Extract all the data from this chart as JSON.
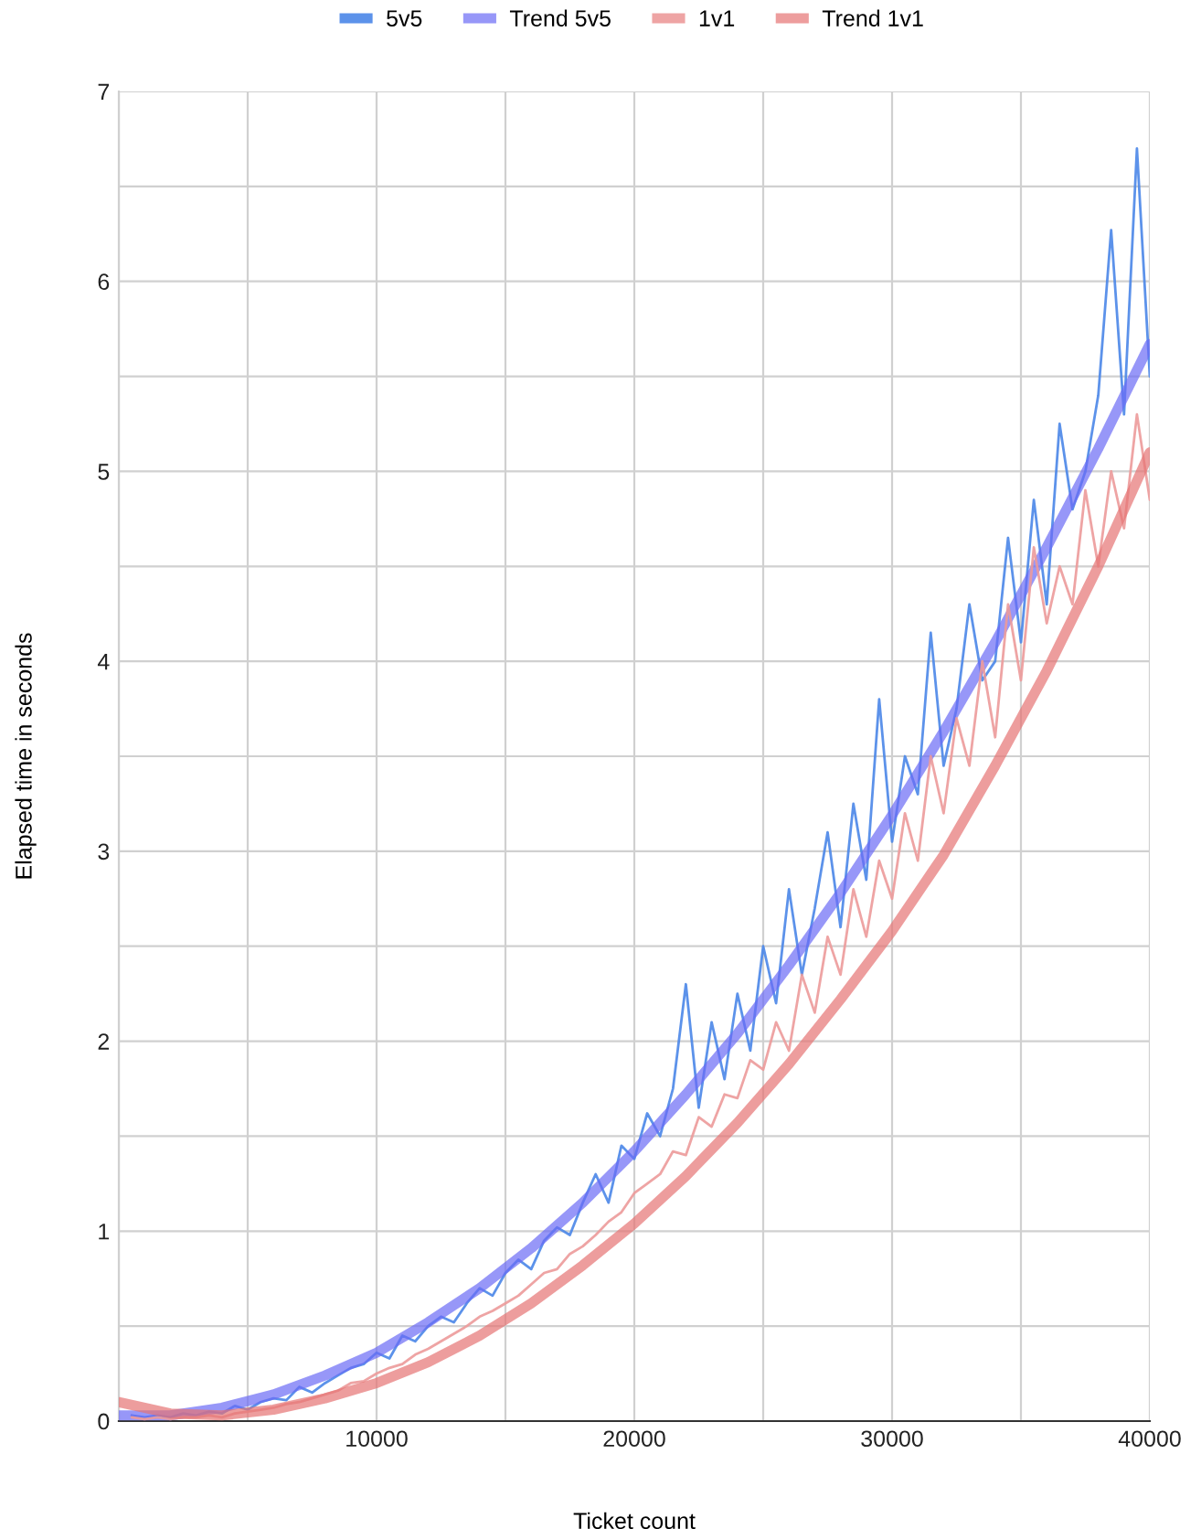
{
  "chart_data": {
    "type": "line",
    "xlabel": "Ticket count",
    "ylabel": "Elapsed time in seconds",
    "xlim": [
      0,
      40000
    ],
    "ylim": [
      0,
      7
    ],
    "xticks": [
      {
        "value": 0,
        "label": null
      },
      {
        "value": 5000,
        "label": null
      },
      10000,
      {
        "value": 15000,
        "label": null
      },
      20000,
      {
        "value": 25000,
        "label": null
      },
      30000,
      {
        "value": 35000,
        "label": null
      },
      40000
    ],
    "yticks": [
      0,
      {
        "value": 0.5,
        "label": null
      },
      1,
      {
        "value": 1.5,
        "label": null
      },
      2,
      {
        "value": 2.5,
        "label": null
      },
      3,
      {
        "value": 3.5,
        "label": null
      },
      4,
      {
        "value": 4.5,
        "label": null
      },
      5,
      {
        "value": 5.5,
        "label": null
      },
      6,
      {
        "value": 6.5,
        "label": null
      },
      7
    ],
    "grid": true,
    "legend": "top",
    "marker": "none",
    "line_style": "solid",
    "series": [
      {
        "name": "5v5",
        "color": "#4a86e8",
        "x": [
          500,
          1000,
          1500,
          2000,
          2500,
          3000,
          3500,
          4000,
          4500,
          5000,
          5500,
          6000,
          6500,
          7000,
          7500,
          8000,
          8500,
          9000,
          9500,
          10000,
          10500,
          11000,
          11500,
          12000,
          12500,
          13000,
          13500,
          14000,
          14500,
          15000,
          15500,
          16000,
          16500,
          17000,
          17500,
          18000,
          18500,
          19000,
          19500,
          20000,
          20500,
          21000,
          21500,
          22000,
          22500,
          23000,
          23500,
          24000,
          24500,
          25000,
          25500,
          26000,
          26500,
          27000,
          27500,
          28000,
          28500,
          29000,
          29500,
          30000,
          30500,
          31000,
          31500,
          32000,
          32500,
          33000,
          33500,
          34000,
          34500,
          35000,
          35500,
          36000,
          36500,
          37000,
          37500,
          38000,
          38500,
          39000,
          39500,
          40000
        ],
        "values": [
          0.03,
          0.02,
          0.03,
          0.02,
          0.04,
          0.03,
          0.05,
          0.04,
          0.08,
          0.06,
          0.1,
          0.12,
          0.11,
          0.18,
          0.15,
          0.2,
          0.24,
          0.28,
          0.3,
          0.36,
          0.33,
          0.45,
          0.42,
          0.5,
          0.55,
          0.52,
          0.62,
          0.7,
          0.66,
          0.78,
          0.85,
          0.8,
          0.95,
          1.02,
          0.98,
          1.15,
          1.3,
          1.15,
          1.45,
          1.38,
          1.62,
          1.5,
          1.75,
          2.3,
          1.65,
          2.1,
          1.8,
          2.25,
          1.95,
          2.5,
          2.2,
          2.8,
          2.35,
          2.7,
          3.1,
          2.6,
          3.25,
          2.85,
          3.8,
          3.05,
          3.5,
          3.3,
          4.15,
          3.45,
          3.75,
          4.3,
          3.9,
          4.0,
          4.65,
          4.1,
          4.85,
          4.3,
          5.25,
          4.8,
          5.0,
          5.4,
          6.27,
          5.3,
          6.7,
          5.5
        ]
      },
      {
        "name": "Trend 5v5",
        "color": "#6b6bf5",
        "x": [
          0,
          2000,
          4000,
          6000,
          8000,
          10000,
          12000,
          14000,
          16000,
          18000,
          20000,
          22000,
          24000,
          26000,
          28000,
          30000,
          32000,
          34000,
          36000,
          38000,
          40000
        ],
        "values": [
          0.03,
          0.03,
          0.07,
          0.14,
          0.24,
          0.36,
          0.52,
          0.7,
          0.91,
          1.15,
          1.42,
          1.72,
          2.04,
          2.4,
          2.78,
          3.19,
          3.63,
          4.1,
          4.6,
          5.12,
          5.67
        ]
      },
      {
        "name": "1v1",
        "color": "#ec9a9a",
        "x": [
          500,
          1000,
          1500,
          2000,
          2500,
          3000,
          3500,
          4000,
          4500,
          5000,
          5500,
          6000,
          6500,
          7000,
          7500,
          8000,
          8500,
          9000,
          9500,
          10000,
          10500,
          11000,
          11500,
          12000,
          12500,
          13000,
          13500,
          14000,
          14500,
          15000,
          15500,
          16000,
          16500,
          17000,
          17500,
          18000,
          18500,
          19000,
          19500,
          20000,
          20500,
          21000,
          21500,
          22000,
          22500,
          23000,
          23500,
          24000,
          24500,
          25000,
          25500,
          26000,
          26500,
          27000,
          27500,
          28000,
          28500,
          29000,
          29500,
          30000,
          30500,
          31000,
          31500,
          32000,
          32500,
          33000,
          33500,
          34000,
          34500,
          35000,
          35500,
          36000,
          36500,
          37000,
          37500,
          38000,
          38500,
          39000,
          39500,
          40000
        ],
        "values": [
          0.02,
          0.01,
          0.02,
          0.01,
          0.02,
          0.02,
          0.03,
          0.02,
          0.04,
          0.05,
          0.06,
          0.07,
          0.09,
          0.1,
          0.12,
          0.14,
          0.16,
          0.2,
          0.21,
          0.25,
          0.28,
          0.3,
          0.35,
          0.38,
          0.42,
          0.46,
          0.5,
          0.55,
          0.58,
          0.62,
          0.66,
          0.72,
          0.78,
          0.8,
          0.88,
          0.92,
          0.98,
          1.05,
          1.1,
          1.2,
          1.25,
          1.3,
          1.42,
          1.4,
          1.6,
          1.55,
          1.72,
          1.7,
          1.9,
          1.85,
          2.1,
          1.95,
          2.35,
          2.15,
          2.55,
          2.35,
          2.8,
          2.55,
          2.95,
          2.75,
          3.2,
          2.95,
          3.5,
          3.2,
          3.7,
          3.45,
          4.0,
          3.6,
          4.3,
          3.9,
          4.6,
          4.2,
          4.5,
          4.3,
          4.9,
          4.5,
          5.0,
          4.7,
          5.3,
          4.85
        ]
      },
      {
        "name": "Trend 1v1",
        "color": "#e57373",
        "x": [
          0,
          2000,
          4000,
          6000,
          8000,
          10000,
          12000,
          14000,
          16000,
          18000,
          20000,
          22000,
          24000,
          26000,
          28000,
          30000,
          32000,
          34000,
          36000,
          38000,
          40000
        ],
        "values": [
          0.1,
          0.04,
          0.03,
          0.06,
          0.12,
          0.2,
          0.31,
          0.45,
          0.62,
          0.82,
          1.04,
          1.29,
          1.57,
          1.88,
          2.22,
          2.58,
          2.98,
          3.45,
          3.95,
          4.5,
          5.1
        ]
      }
    ]
  }
}
